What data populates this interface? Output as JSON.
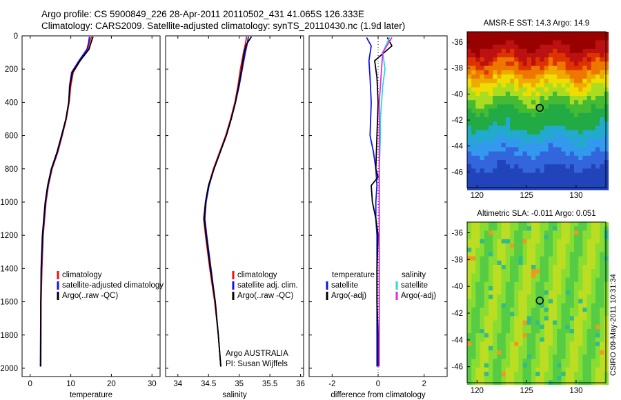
{
  "header": {
    "line1": "Argo profile: CS 5900849_226 28-Apr-2011 20110502_431 41.065S 126.333E",
    "line2": "Climatology: CARS2009. Satellite-adjusted climatology: synTS_20110430.nc (1.9d later)"
  },
  "side_label": "CSIRO 09-May-2011 10:31:34",
  "colors": {
    "climatology": "#ee1111",
    "satellite": "#1111ee",
    "argo": "#000000",
    "satellite_sal": "#22dddd",
    "argo_sal": "#ee22ee"
  },
  "chart_data": [
    {
      "type": "line",
      "name": "temperature-panel",
      "xlabel": "temperature",
      "xlim": [
        -2,
        32
      ],
      "ylim": [
        2050,
        0
      ],
      "xticks": [
        0,
        10,
        20,
        30
      ],
      "yticks": [
        0,
        200,
        400,
        600,
        800,
        1000,
        1200,
        1400,
        1600,
        1800,
        2000
      ],
      "legend": [
        "climatology",
        "satellite-adjusted climatology",
        "Argo(..raw -QC)"
      ],
      "series": [
        {
          "name": "climatology",
          "color": "#ee1111",
          "x": [
            15.1,
            14.6,
            14.2,
            12.3,
            10.6,
            10.0,
            9.6,
            8.9,
            7.9,
            6.8,
            5.4,
            4.5,
            3.9,
            3.2,
            2.9,
            2.7,
            2.6
          ],
          "y": [
            5,
            40,
            80,
            150,
            220,
            300,
            400,
            500,
            600,
            700,
            800,
            900,
            1000,
            1200,
            1400,
            1600,
            1990
          ]
        },
        {
          "name": "satellite-adjusted climatology",
          "color": "#1111ee",
          "x": [
            14.6,
            14.4,
            14.0,
            12.0,
            10.2,
            9.7,
            9.5,
            8.8,
            7.8,
            6.7,
            5.3,
            4.4,
            3.8,
            3.1,
            2.8,
            2.6,
            2.5
          ],
          "y": [
            5,
            40,
            80,
            150,
            220,
            300,
            400,
            500,
            600,
            700,
            800,
            900,
            1000,
            1200,
            1400,
            1600,
            1990
          ]
        },
        {
          "name": "Argo(..raw -QC)",
          "color": "#000000",
          "x": [
            15.5,
            15.0,
            14.5,
            12.3,
            10.4,
            9.8,
            9.5,
            8.8,
            7.7,
            6.6,
            5.2,
            4.3,
            3.7,
            3.0,
            2.7,
            2.6,
            2.6
          ],
          "y": [
            5,
            40,
            80,
            150,
            220,
            300,
            400,
            500,
            600,
            700,
            800,
            900,
            1000,
            1200,
            1400,
            1600,
            1990
          ]
        }
      ]
    },
    {
      "type": "line",
      "name": "salinity-panel",
      "xlabel": "salinity",
      "xlim": [
        33.8,
        36.05
      ],
      "ylim": [
        2050,
        0
      ],
      "xticks": [
        34,
        34.5,
        35,
        35.5,
        36
      ],
      "legend": [
        "climatology",
        "satellite adj. clim.",
        "Argo(..raw -QC)"
      ],
      "annotation": [
        "Argo AUSTRALIA",
        "PI: Susan Wijffels"
      ],
      "series": [
        {
          "name": "climatology",
          "color": "#ee1111",
          "x": [
            35.12,
            35.1,
            35.07,
            35.02,
            34.98,
            34.93,
            34.86,
            34.78,
            34.68,
            34.58,
            34.5,
            34.45,
            34.42,
            34.45,
            34.52,
            34.6,
            34.66,
            34.7
          ],
          "y": [
            5,
            50,
            100,
            200,
            300,
            400,
            500,
            600,
            700,
            800,
            900,
            1000,
            1100,
            1200,
            1400,
            1600,
            1800,
            1990
          ]
        },
        {
          "name": "satellite adj. clim.",
          "color": "#1111ee",
          "x": [
            35.15,
            35.13,
            35.1,
            35.05,
            35.0,
            34.94,
            34.87,
            34.79,
            34.69,
            34.59,
            34.51,
            34.46,
            34.44,
            34.47,
            34.54,
            34.61,
            34.66,
            34.7
          ],
          "y": [
            5,
            50,
            100,
            200,
            300,
            400,
            500,
            600,
            700,
            800,
            900,
            1000,
            1100,
            1200,
            1400,
            1600,
            1800,
            1990
          ]
        },
        {
          "name": "Argo(..raw -QC)",
          "color": "#000000",
          "x": [
            35.2,
            35.12,
            35.08,
            35.04,
            34.99,
            34.94,
            34.87,
            34.79,
            34.69,
            34.59,
            34.5,
            34.45,
            34.43,
            34.46,
            34.53,
            34.61,
            34.66,
            34.7
          ],
          "y": [
            5,
            50,
            100,
            200,
            300,
            400,
            500,
            600,
            700,
            800,
            900,
            1000,
            1100,
            1200,
            1400,
            1600,
            1800,
            1990
          ]
        }
      ]
    },
    {
      "type": "line",
      "name": "difference-panel",
      "xlabel": "difference from climatology",
      "xlim": [
        -3.0,
        3.0
      ],
      "ylim": [
        2050,
        0
      ],
      "xticks": [
        -2,
        0,
        2
      ],
      "legend_temperature": {
        "title": "temperature",
        "items": [
          "satellite",
          "Argo(-adj)"
        ]
      },
      "legend_salinity": {
        "title": "salinity",
        "items": [
          "satellite",
          "Argo(-adj)"
        ]
      },
      "series": [
        {
          "name": "temperature satellite",
          "color": "#1111ee",
          "x": [
            -0.5,
            -0.3,
            -0.4,
            -0.35,
            -0.3,
            -0.35,
            -0.2,
            -0.1,
            -0.05,
            -0.1,
            -0.1,
            -0.05,
            -0.05,
            -0.05,
            -0.05,
            -0.05
          ],
          "y": [
            10,
            60,
            150,
            250,
            400,
            600,
            700,
            800,
            900,
            1000,
            1100,
            1200,
            1400,
            1600,
            1800,
            1990
          ]
        },
        {
          "name": "temperature Argo(-adj)",
          "color": "#000000",
          "x": [
            0.4,
            0.6,
            -0.15,
            -0.05,
            0.0,
            -0.05,
            -0.1,
            0.0,
            -0.3,
            -0.25,
            -0.1,
            0.0,
            -0.05,
            -0.05,
            0.0,
            0.0
          ],
          "y": [
            10,
            60,
            150,
            250,
            400,
            600,
            800,
            850,
            900,
            1000,
            1100,
            1200,
            1400,
            1600,
            1800,
            1990
          ]
        },
        {
          "name": "salinity satellite",
          "color": "#22dddd",
          "x": [
            0.5,
            0.2,
            0.3,
            0.2,
            0.15,
            0.1,
            0.1,
            0.05,
            0.05,
            0.05,
            0.05,
            0.05,
            0.05
          ],
          "y": [
            10,
            100,
            200,
            300,
            400,
            500,
            600,
            800,
            1000,
            1200,
            1400,
            1600,
            1990
          ]
        },
        {
          "name": "salinity Argo(-adj)",
          "color": "#ee22ee",
          "x": [
            0.6,
            0.2,
            0.15,
            0.1,
            0.05,
            0.05,
            0.05,
            0.05,
            0.05
          ],
          "y": [
            10,
            100,
            200,
            300,
            400,
            600,
            800,
            1000,
            1990
          ]
        }
      ]
    },
    {
      "type": "heatmap",
      "name": "sst-map",
      "title": "AMSR-E SST: 14.3  Argo: 14.9",
      "xlim": [
        119,
        133
      ],
      "ylim": [
        -47.2,
        -35.2
      ],
      "xticks": [
        120,
        125,
        130
      ],
      "yticks": [
        -36,
        -38,
        -40,
        -42,
        -44,
        -46
      ],
      "marker": {
        "lon": 126.333,
        "lat": -41.065
      },
      "zone_colors": [
        "#990000",
        "#bb1111",
        "#dd3300",
        "#ee7700",
        "#eeaa00",
        "#eedd00",
        "#aadd22",
        "#44bb33",
        "#22aa44",
        "#22aacc",
        "#3399ee",
        "#3366dd",
        "#2244bb"
      ],
      "zone_bounds_lat": [
        -35.2,
        -36.4,
        -37.2,
        -37.8,
        -38.4,
        -39.0,
        -39.6,
        -40.4,
        -41.2,
        -42.6,
        -43.5,
        -44.5,
        -45.6,
        -47.2
      ]
    },
    {
      "type": "heatmap",
      "name": "sla-map",
      "title": "Altimetric SLA: -0.011  Argo: 0.051",
      "xlim": [
        119,
        133
      ],
      "ylim": [
        -47.2,
        -35.2
      ],
      "xticks": [
        120,
        125,
        130
      ],
      "yticks": [
        -36,
        -38,
        -40,
        -42,
        -44,
        -46
      ],
      "marker": {
        "lon": 126.333,
        "lat": -41.065
      },
      "base_color": "#88dd33"
    }
  ]
}
